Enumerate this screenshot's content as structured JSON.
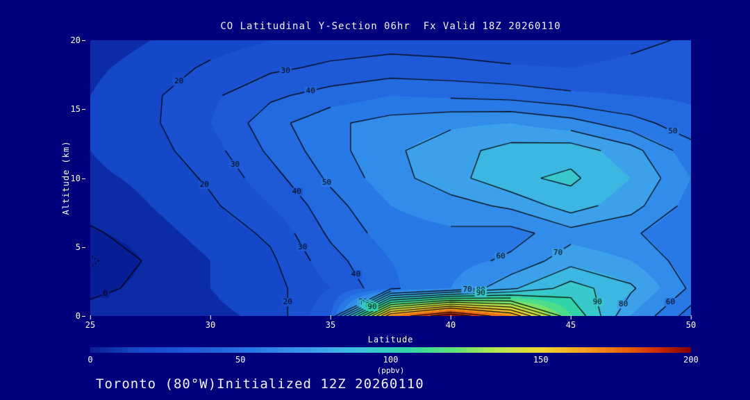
{
  "title": "CO Latitudinal Y-Section 06hr  Fx Valid 18Z 20260110",
  "footer": "Toronto (80°W)Initialized 12Z 20260110",
  "axes": {
    "x_label": "Latitude",
    "y_label": "Altitude (km)",
    "x_ticks": [
      25,
      30,
      35,
      40,
      45,
      50
    ],
    "y_ticks": [
      0,
      5,
      10,
      15,
      20
    ]
  },
  "colorbar": {
    "ticks": [
      0,
      50,
      100,
      150,
      200
    ],
    "unit_label": "(ppbv)",
    "range": [
      0,
      200
    ],
    "stops": [
      [
        0,
        "#081e96"
      ],
      [
        15,
        "#1448c8"
      ],
      [
        35,
        "#1e5ad7"
      ],
      [
        55,
        "#2878e6"
      ],
      [
        75,
        "#3ca0eb"
      ],
      [
        90,
        "#3cc3dc"
      ],
      [
        105,
        "#32d2aa"
      ],
      [
        120,
        "#5ae178"
      ],
      [
        135,
        "#b4e650"
      ],
      [
        150,
        "#f0d732"
      ],
      [
        165,
        "#f5a01e"
      ],
      [
        180,
        "#e65a0a"
      ],
      [
        190,
        "#c82808"
      ],
      [
        200,
        "#820000"
      ]
    ]
  },
  "colors": {
    "background": "#00007d",
    "text": "#ffffff",
    "contour_line": "#000000"
  },
  "chart_data": {
    "type": "heatmap",
    "style": "filled contour cross-section with overlaid labeled line contours",
    "title": "CO Latitudinal Y-Section 06hr  Fx Valid 18Z 20260110",
    "xlabel": "Latitude",
    "ylabel": "Altitude (km)",
    "xlim": [
      25,
      50
    ],
    "ylim": [
      0,
      20
    ],
    "colorbar_range": [
      0,
      200
    ],
    "units": "ppbv",
    "x": [
      25,
      27.5,
      30,
      32.5,
      35,
      37.5,
      40,
      42.5,
      45,
      47.5,
      50
    ],
    "y": [
      0,
      2,
      4,
      6,
      8,
      10,
      12,
      14,
      16,
      18,
      20
    ],
    "values": [
      [
        6,
        4,
        8,
        12,
        40,
        170,
        200,
        170,
        110,
        70,
        45
      ],
      [
        -4,
        4,
        10,
        16,
        30,
        48,
        60,
        78,
        95,
        82,
        58
      ],
      [
        -12,
        2,
        10,
        18,
        36,
        50,
        56,
        62,
        76,
        70,
        54
      ],
      [
        -2,
        6,
        14,
        22,
        42,
        55,
        58,
        56,
        66,
        62,
        50
      ],
      [
        5,
        10,
        18,
        30,
        46,
        60,
        66,
        72,
        85,
        74,
        56
      ],
      [
        8,
        12,
        22,
        36,
        52,
        66,
        76,
        88,
        92,
        80,
        60
      ],
      [
        10,
        16,
        26,
        42,
        56,
        68,
        76,
        84,
        86,
        74,
        54
      ],
      [
        12,
        18,
        30,
        46,
        58,
        64,
        68,
        70,
        64,
        54,
        44
      ],
      [
        10,
        18,
        28,
        38,
        44,
        50,
        48,
        46,
        42,
        40,
        38
      ],
      [
        8,
        14,
        22,
        28,
        32,
        34,
        33,
        31,
        30,
        32,
        34
      ],
      [
        5,
        10,
        15,
        20,
        24,
        26,
        25,
        24,
        25,
        28,
        31
      ]
    ],
    "contour_interval": 10,
    "contour_levels": [
      -10,
      0,
      10,
      20,
      30,
      40,
      50,
      60,
      70,
      80,
      90,
      100,
      110,
      120,
      130,
      140,
      150,
      160,
      170,
      180,
      190,
      200
    ],
    "contour_label_levels": [
      0,
      10,
      20,
      30,
      40,
      50,
      60,
      70,
      80,
      90
    ],
    "negative_contour_style": "dotted"
  }
}
